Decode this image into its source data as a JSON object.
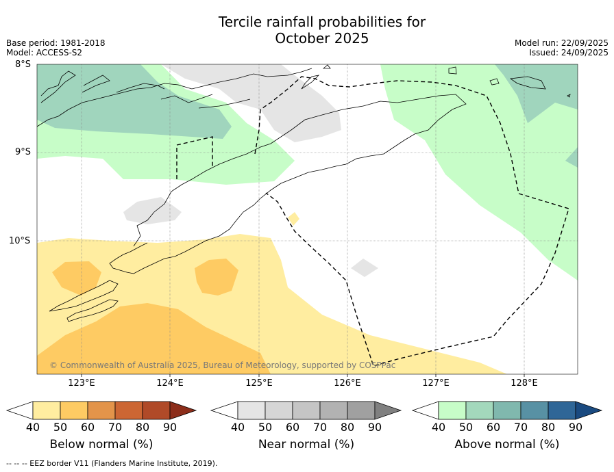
{
  "title_line1": "Tercile rainfall probabilities for",
  "title_line2": "October 2025",
  "base_period": "Base period: 1981-2018",
  "model": "Model: ACCESS-S2",
  "model_run": "Model run: 22/09/2025",
  "issued": "Issued: 24/09/2025",
  "lat_labels": [
    "8°S",
    "9°S",
    "10°S"
  ],
  "lon_labels": [
    "123°E",
    "124°E",
    "125°E",
    "126°E",
    "127°E",
    "128°E"
  ],
  "copyright": "© Commonwealth of Australia 2025, Bureau of Meteorology, supported by COSPPac",
  "colorbars": {
    "below": {
      "label": "Below normal (%)",
      "ticks": [
        "40",
        "50",
        "60",
        "70",
        "80",
        "90"
      ],
      "colors": [
        "#ffeda0",
        "#fecb63",
        "#e3944a",
        "#cc6633",
        "#b04a28",
        "#8c2d1a"
      ]
    },
    "near": {
      "label": "Near normal (%)",
      "ticks": [
        "40",
        "50",
        "60",
        "70",
        "80",
        "90"
      ],
      "colors": [
        "#e5e5e5",
        "#d6d6d6",
        "#c5c5c5",
        "#b2b2b2",
        "#a0a0a0",
        "#808080"
      ]
    },
    "above": {
      "label": "Above normal (%)",
      "ticks": [
        "40",
        "50",
        "60",
        "70",
        "80",
        "90"
      ],
      "colors": [
        "#c7fdc8",
        "#a3d8bc",
        "#80b8ae",
        "#5891a4",
        "#2f6697",
        "#1a4a80"
      ]
    }
  },
  "footnote": "--  --  -- EEZ border V11 (Flanders Marine Institute, 2019)."
}
